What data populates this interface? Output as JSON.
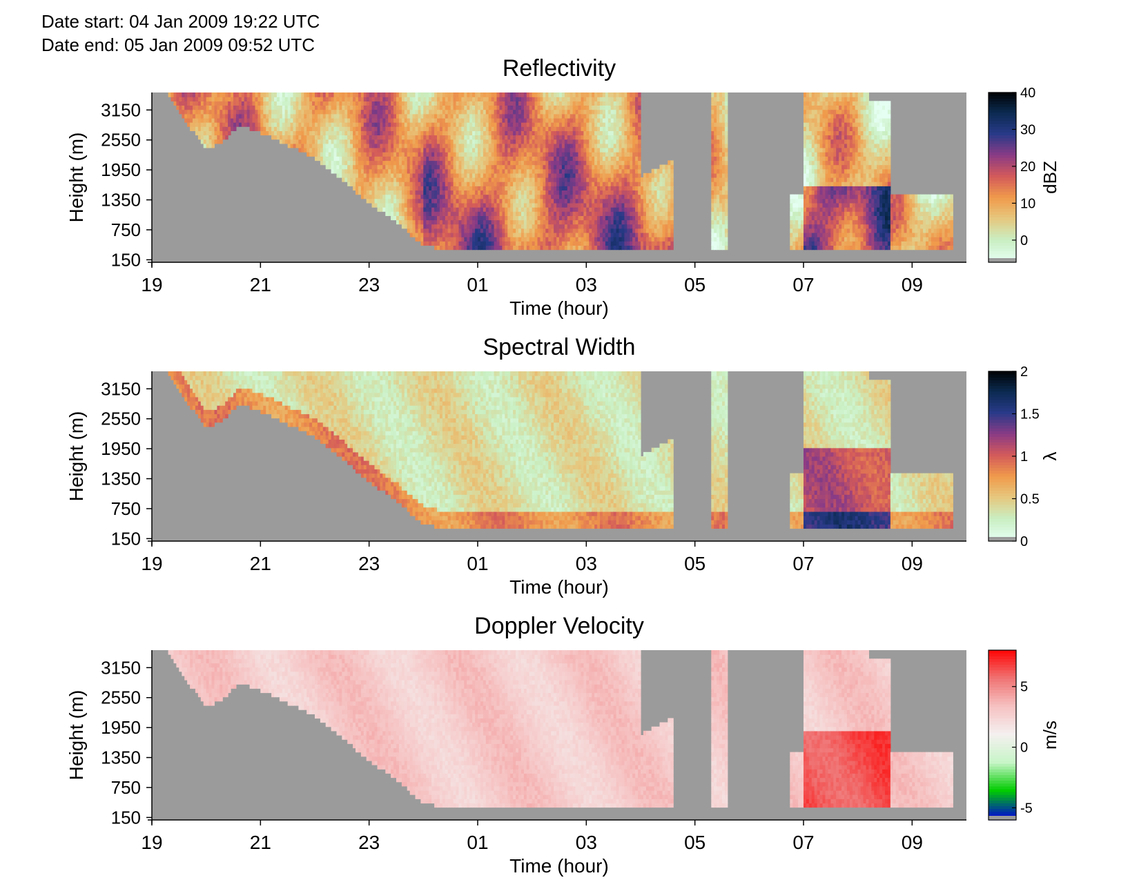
{
  "header": {
    "date_start": "Date start: 04 Jan 2009 19:22 UTC",
    "date_end": "Date end:  05 Jan 2009 09:52 UTC"
  },
  "colors": {
    "background_no_data": "#9b9b9b",
    "reflectivity_scale": [
      "#e5fff3",
      "#c9efc2",
      "#e6c87f",
      "#f09a4b",
      "#d35a5a",
      "#8a3b86",
      "#283a88",
      "#0b2a50",
      "#000000"
    ],
    "width_scale": [
      "#e5fff3",
      "#c9efc2",
      "#e6c87f",
      "#f09a4b",
      "#d35a5a",
      "#8a3b86",
      "#283a88",
      "#0b2a50",
      "#000000"
    ],
    "velocity_scale": [
      "#0000dd",
      "#00cc00",
      "#c8f5c8",
      "#f5f0f0",
      "#f6c0c0",
      "#f07070",
      "#ff0000"
    ]
  },
  "chart_data": [
    {
      "type": "heatmap",
      "title": "Reflectivity",
      "xlabel": "Time (hour)",
      "ylabel": "Height (m)",
      "xticks": [
        "19",
        "21",
        "23",
        "01",
        "03",
        "05",
        "07",
        "09"
      ],
      "yticks": [
        "3150",
        "2550",
        "1950",
        "1350",
        "750",
        "150"
      ],
      "xlim": [
        19,
        34
      ],
      "ylim": [
        100,
        3500
      ],
      "colorbar": {
        "label": "dBZ",
        "ticks": [
          "40",
          "30",
          "20",
          "10",
          "0"
        ],
        "range": [
          -6,
          40
        ]
      },
      "cloud_base_m": [
        [
          19.25,
          3500
        ],
        [
          20.0,
          2350
        ],
        [
          20.3,
          2500
        ],
        [
          20.6,
          2850
        ],
        [
          21.0,
          2700
        ],
        [
          22.0,
          2200
        ],
        [
          23.0,
          1300
        ],
        [
          23.5,
          900
        ],
        [
          24.0,
          450
        ],
        [
          24.4,
          350
        ]
      ],
      "data_gaps_hours": [
        [
          28.75,
          29.3
        ],
        [
          29.6,
          30.75
        ],
        [
          33.75,
          34.0
        ]
      ],
      "cloud_top_m": 3500,
      "value_notes": "max about 35 dBZ near 08 at 500-1000 m"
    },
    {
      "type": "heatmap",
      "title": "Spectral Width",
      "xlabel": "Time (hour)",
      "ylabel": "Height (m)",
      "xticks": [
        "19",
        "21",
        "23",
        "01",
        "03",
        "05",
        "07",
        "09"
      ],
      "yticks": [
        "3150",
        "2550",
        "1950",
        "1350",
        "750",
        "150"
      ],
      "xlim": [
        19,
        34
      ],
      "ylim": [
        100,
        3500
      ],
      "colorbar": {
        "label": "λ",
        "ticks": [
          "2",
          "1.5",
          "1",
          "0.5",
          "0"
        ],
        "range": [
          0,
          2
        ]
      }
    },
    {
      "type": "heatmap",
      "title": "Doppler Velocity",
      "xlabel": "Time (hour)",
      "ylabel": "Height (m)",
      "xticks": [
        "19",
        "21",
        "23",
        "01",
        "03",
        "05",
        "07",
        "09"
      ],
      "yticks": [
        "3150",
        "2550",
        "1950",
        "1350",
        "750",
        "150"
      ],
      "xlim": [
        19,
        34
      ],
      "ylim": [
        100,
        3500
      ],
      "colorbar": {
        "label": "m/s",
        "ticks": [
          "5",
          "0",
          "-5"
        ],
        "range": [
          -6,
          8
        ]
      }
    }
  ]
}
